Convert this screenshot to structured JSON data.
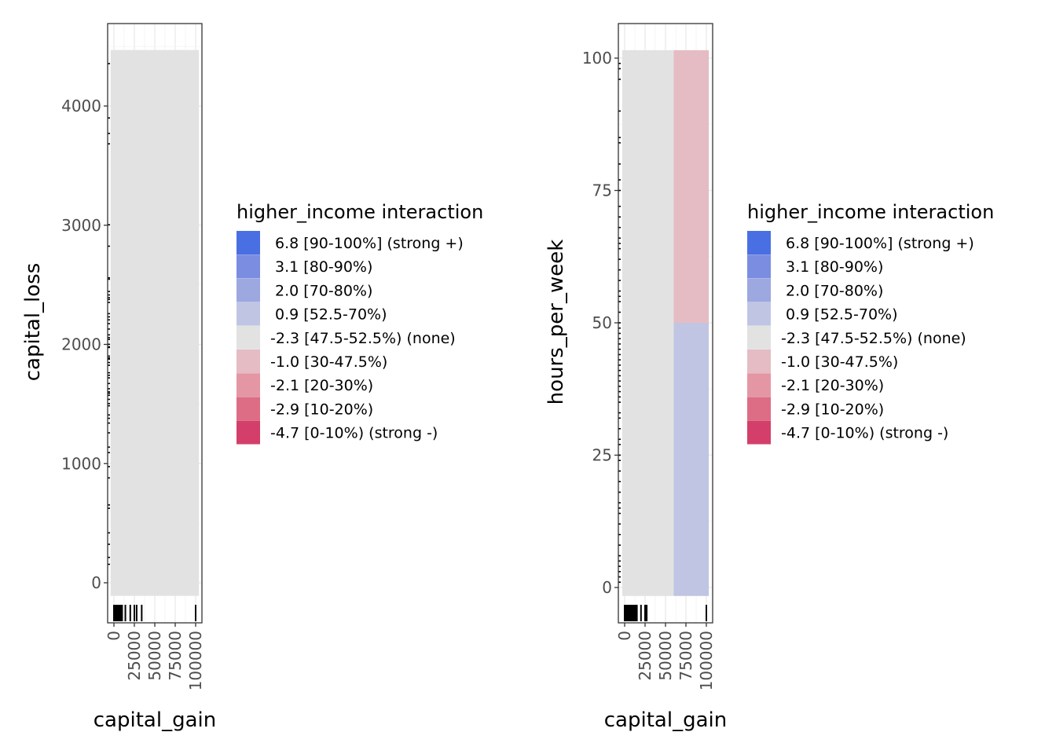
{
  "chart_data": [
    {
      "type": "heatmap",
      "xlabel": "capital_gain",
      "ylabel": "capital_loss",
      "xlim": [
        -4000,
        106000
      ],
      "ylim": [
        -400,
        4650
      ],
      "xticks": [
        0,
        25000,
        50000,
        75000,
        100000
      ],
      "xtick_labels": [
        "0",
        "25000",
        "50000",
        "75000",
        "100000"
      ],
      "yticks": [
        0,
        1000,
        2000,
        3000,
        4000
      ],
      "ytick_labels": [
        "0",
        "1000",
        "2000",
        "3000",
        "4000"
      ],
      "grid": true,
      "tiles": [
        {
          "x": [
            -4000,
            104000
          ],
          "y": [
            -110,
            4470
          ],
          "level": "-2.3 [47.5-52.5%) (none)"
        }
      ],
      "rug_x": [
        0,
        1000,
        2000,
        3000,
        4000,
        5000,
        6000,
        7000,
        8000,
        9000,
        10000,
        14000,
        20000,
        25000,
        27800,
        34000,
        99999
      ],
      "rug_y": [
        4356,
        3900,
        3770,
        3683,
        3004,
        2824,
        2559,
        2547,
        2444,
        2415,
        2392,
        2377,
        2352,
        2258,
        2231,
        2206,
        2174,
        2129,
        2080,
        2057,
        2042,
        2001,
        1980,
        1974,
        1902,
        1887,
        1876,
        1848,
        1825,
        1762,
        1741,
        1719,
        1672,
        1628,
        1602,
        1590,
        1573,
        1539,
        1504,
        1485,
        1408,
        1380,
        1340,
        1258,
        1138,
        1092,
        974,
        880,
        653,
        625,
        419,
        323,
        213,
        155
      ]
    },
    {
      "type": "heatmap",
      "xlabel": "capital_gain",
      "ylabel": "hours_per_week",
      "xlim": [
        -4000,
        106000
      ],
      "ylim": [
        -6,
        106
      ],
      "xticks": [
        0,
        25000,
        50000,
        75000,
        100000
      ],
      "xtick_labels": [
        "0",
        "25000",
        "50000",
        "75000",
        "100000"
      ],
      "yticks": [
        0,
        25,
        50,
        75,
        100
      ],
      "ytick_labels": [
        "0",
        "25",
        "50",
        "75",
        "100"
      ],
      "grid": true,
      "tiles": [
        {
          "x": [
            -3000,
            60000
          ],
          "y": [
            -1.6,
            101.5
          ],
          "level": "-2.3 [47.5-52.5%) (none)"
        },
        {
          "x": [
            60000,
            103000
          ],
          "y": [
            50,
            101.5
          ],
          "level": "-1.0 [30-47.5%)"
        },
        {
          "x": [
            60000,
            103000
          ],
          "y": [
            -1.6,
            50
          ],
          "level": "0.9 [52.5-70%)"
        }
      ],
      "rug_x": [
        0,
        1000,
        2000,
        3000,
        4000,
        5000,
        6000,
        7000,
        8000,
        9000,
        10000,
        11000,
        12000,
        13000,
        14000,
        15000,
        20000,
        25000,
        27000,
        99999
      ],
      "rug_y": [
        1,
        2,
        3,
        4,
        5,
        6,
        8,
        10,
        12,
        14,
        15,
        16,
        18,
        20,
        22,
        24,
        25,
        27,
        28,
        30,
        32,
        33,
        35,
        36,
        37,
        38,
        39,
        40,
        41,
        42,
        43,
        44,
        45,
        46,
        47,
        48,
        49,
        50,
        52,
        54,
        55,
        56,
        58,
        60,
        62,
        64,
        65,
        66,
        68,
        70,
        72,
        75,
        77,
        80,
        84,
        85,
        90,
        96,
        98,
        99
      ]
    }
  ],
  "legend": {
    "title": "higher_income interaction",
    "position": "right",
    "items": [
      {
        "label": " 6.8 [90-100%] (strong +)",
        "color": "#4A6FE3"
      },
      {
        "label": " 3.1 [80-90%)",
        "color": "#7A8DE0"
      },
      {
        "label": " 2.0 [70-80%)",
        "color": "#9DA7E0"
      },
      {
        "label": " 0.9 [52.5-70%)",
        "color": "#C0C5E3"
      },
      {
        "label": "-2.3 [47.5-52.5%) (none)",
        "color": "#E2E2E2"
      },
      {
        "label": "-1.0 [30-47.5%)",
        "color": "#E5BCC3"
      },
      {
        "label": "-2.1 [20-30%)",
        "color": "#E496A5"
      },
      {
        "label": "-2.9 [10-20%)",
        "color": "#DD6C85"
      },
      {
        "label": "-4.7 [0-10%) (strong -)",
        "color": "#D33F6A"
      }
    ]
  }
}
